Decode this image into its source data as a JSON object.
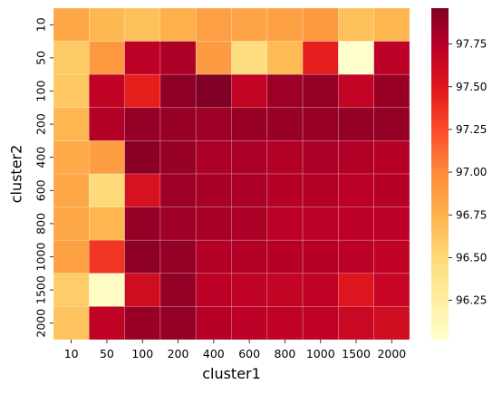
{
  "chart_data": {
    "type": "heatmap",
    "title": "",
    "xlabel": "cluster1",
    "ylabel": "cluster2",
    "x_categories": [
      "10",
      "50",
      "100",
      "200",
      "400",
      "600",
      "800",
      "1000",
      "1500",
      "2000"
    ],
    "y_categories": [
      "10",
      "50",
      "100",
      "200",
      "400",
      "600",
      "800",
      "1000",
      "1500",
      "2000"
    ],
    "values": [
      [
        96.82,
        96.71,
        96.66,
        96.76,
        96.87,
        96.84,
        96.86,
        96.91,
        96.66,
        96.72
      ],
      [
        96.6,
        96.92,
        97.72,
        97.78,
        96.9,
        96.44,
        96.7,
        97.46,
        96.02,
        97.72
      ],
      [
        96.62,
        97.7,
        97.45,
        97.9,
        97.96,
        97.68,
        97.85,
        97.88,
        97.68,
        97.86
      ],
      [
        96.72,
        97.76,
        97.88,
        97.86,
        97.84,
        97.86,
        97.86,
        97.86,
        97.88,
        97.88
      ],
      [
        96.8,
        96.88,
        97.92,
        97.86,
        97.78,
        97.78,
        97.76,
        97.78,
        97.76,
        97.74
      ],
      [
        96.82,
        96.48,
        97.56,
        97.84,
        97.8,
        97.78,
        97.74,
        97.76,
        97.72,
        97.74
      ],
      [
        96.82,
        96.72,
        97.88,
        97.84,
        97.8,
        97.78,
        97.72,
        97.72,
        97.72,
        97.72
      ],
      [
        96.86,
        97.34,
        97.9,
        97.88,
        97.76,
        97.76,
        97.74,
        97.74,
        97.72,
        97.7
      ],
      [
        96.58,
        96.06,
        97.6,
        97.88,
        97.72,
        97.7,
        97.68,
        97.7,
        97.52,
        97.66
      ],
      [
        96.64,
        97.7,
        97.86,
        97.88,
        97.74,
        97.72,
        97.7,
        97.7,
        97.64,
        97.6
      ]
    ],
    "colorbar": {
      "min": 96.02,
      "max": 97.96,
      "ticks": [
        "96.25",
        "96.50",
        "96.75",
        "97.00",
        "97.25",
        "97.50",
        "97.75"
      ],
      "colormap": "YlOrRd",
      "colors": [
        "#ffffcc",
        "#ffeda0",
        "#fed976",
        "#feb24c",
        "#fd8d3c",
        "#fc4e2a",
        "#e31a1c",
        "#bd0026",
        "#800026"
      ]
    },
    "grid": true
  }
}
